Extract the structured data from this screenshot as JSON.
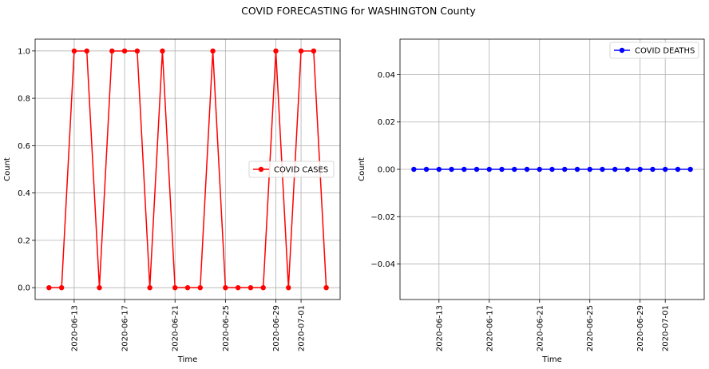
{
  "figure": {
    "title": "COVID FORECASTING for WASHINGTON County"
  },
  "chart_data": [
    {
      "type": "line",
      "xlabel": "Time",
      "ylabel": "Count",
      "x_dates": [
        "2020-06-11",
        "2020-06-12",
        "2020-06-13",
        "2020-06-14",
        "2020-06-15",
        "2020-06-16",
        "2020-06-17",
        "2020-06-18",
        "2020-06-19",
        "2020-06-20",
        "2020-06-21",
        "2020-06-22",
        "2020-06-23",
        "2020-06-24",
        "2020-06-25",
        "2020-06-26",
        "2020-06-27",
        "2020-06-28",
        "2020-06-29",
        "2020-06-30",
        "2020-07-01",
        "2020-07-02",
        "2020-07-03"
      ],
      "xticks": [
        "2020-06-13",
        "2020-06-17",
        "2020-06-21",
        "2020-06-25",
        "2020-06-29",
        "2020-07-01"
      ],
      "ylim": [
        -0.05,
        1.05
      ],
      "yticks": [
        0.0,
        0.2,
        0.4,
        0.6,
        0.8,
        1.0
      ],
      "ytick_labels": [
        "0.0",
        "0.2",
        "0.4",
        "0.6",
        "0.8",
        "1.0"
      ],
      "grid": true,
      "legend_position": "center-right",
      "series": [
        {
          "name": "COVID CASES",
          "color": "#ff0000",
          "values": [
            0,
            0,
            1,
            1,
            0,
            1,
            1,
            1,
            0,
            1,
            0,
            0,
            0,
            1,
            0,
            0,
            0,
            0,
            1,
            0,
            1,
            1,
            0
          ]
        }
      ]
    },
    {
      "type": "line",
      "xlabel": "Time",
      "ylabel": "Count",
      "x_dates": [
        "2020-06-11",
        "2020-06-12",
        "2020-06-13",
        "2020-06-14",
        "2020-06-15",
        "2020-06-16",
        "2020-06-17",
        "2020-06-18",
        "2020-06-19",
        "2020-06-20",
        "2020-06-21",
        "2020-06-22",
        "2020-06-23",
        "2020-06-24",
        "2020-06-25",
        "2020-06-26",
        "2020-06-27",
        "2020-06-28",
        "2020-06-29",
        "2020-06-30",
        "2020-07-01",
        "2020-07-02",
        "2020-07-03"
      ],
      "xticks": [
        "2020-06-13",
        "2020-06-17",
        "2020-06-21",
        "2020-06-25",
        "2020-06-29",
        "2020-07-01"
      ],
      "ylim": [
        -0.055,
        0.055
      ],
      "yticks": [
        -0.04,
        -0.02,
        0.0,
        0.02,
        0.04
      ],
      "ytick_labels": [
        "−0.04",
        "−0.02",
        "0.00",
        "0.02",
        "0.04"
      ],
      "grid": true,
      "legend_position": "top-right",
      "series": [
        {
          "name": "COVID DEATHS",
          "color": "#0000ff",
          "values": [
            0,
            0,
            0,
            0,
            0,
            0,
            0,
            0,
            0,
            0,
            0,
            0,
            0,
            0,
            0,
            0,
            0,
            0,
            0,
            0,
            0,
            0,
            0
          ]
        }
      ]
    }
  ]
}
